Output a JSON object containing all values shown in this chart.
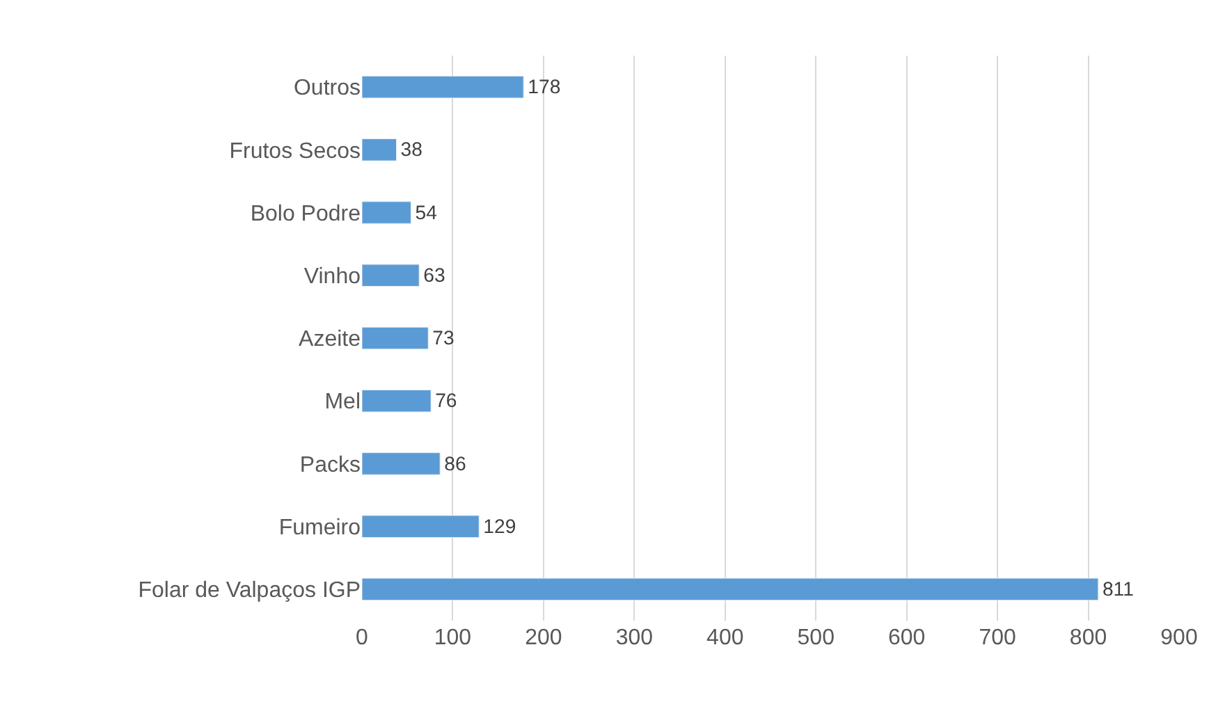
{
  "chart_data": {
    "type": "bar",
    "orientation": "horizontal",
    "categories": [
      "Outros",
      "Frutos Secos",
      "Bolo Podre",
      "Vinho",
      "Azeite",
      "Mel",
      "Packs",
      "Fumeiro",
      "Folar de Valpaços IGP"
    ],
    "values": [
      178,
      38,
      54,
      63,
      73,
      76,
      86,
      129,
      811
    ],
    "color": "#5b9bd5",
    "xlim": [
      0,
      900
    ],
    "xticks": [
      0,
      100,
      200,
      300,
      400,
      500,
      600,
      700,
      800,
      900
    ],
    "grid": "x",
    "data_labels": true,
    "legend": false
  }
}
